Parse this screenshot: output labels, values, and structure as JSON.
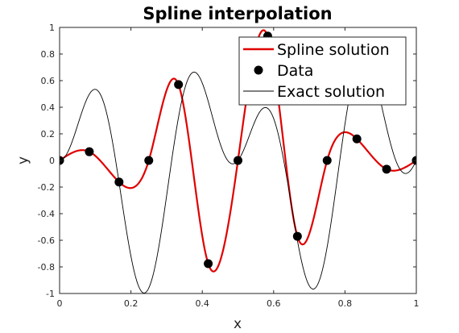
{
  "chart_data": {
    "type": "line",
    "title": "Spline interpolation",
    "xlabel": "x",
    "ylabel": "y",
    "xlim": [
      0,
      1
    ],
    "ylim": [
      -1,
      1
    ],
    "x_ticks": [
      "0",
      "0.2",
      "0.4",
      "0.6",
      "0.8",
      "1"
    ],
    "y_ticks": [
      "-1",
      "-0.8",
      "-0.6",
      "-0.4",
      "-0.2",
      "0",
      "0.2",
      "0.4",
      "0.6",
      "0.8",
      "1"
    ],
    "grid": false,
    "legend_position": "top-right",
    "series": [
      {
        "name": "Spline solution",
        "style": "line",
        "color": "#e00000",
        "x": [
          0,
          0.083333,
          0.166667,
          0.25,
          0.333333,
          0.416667,
          0.5,
          0.583333,
          0.666667,
          0.75,
          0.833333,
          0.916667,
          1
        ],
        "y": [
          0,
          0.0656,
          -0.1619,
          0.0,
          0.5703,
          -0.7755,
          0.0,
          0.9347,
          -0.5701,
          0.0,
          0.1619,
          -0.0656,
          0.0
        ]
      },
      {
        "name": "Data",
        "style": "markers",
        "color": "#000000",
        "x": [
          0,
          0.083333,
          0.166667,
          0.25,
          0.333333,
          0.416667,
          0.5,
          0.583333,
          0.666667,
          0.75,
          0.833333,
          0.916667,
          1
        ],
        "y": [
          0,
          0.0656,
          -0.1619,
          0.0,
          0.5703,
          -0.7755,
          0.0,
          0.9347,
          -0.5701,
          0.0,
          0.1619,
          -0.0656,
          0.0
        ]
      },
      {
        "name": "Exact solution",
        "style": "line",
        "color": "#000000",
        "function": "sin(2*pi*x)*sin(20*x)"
      }
    ]
  }
}
